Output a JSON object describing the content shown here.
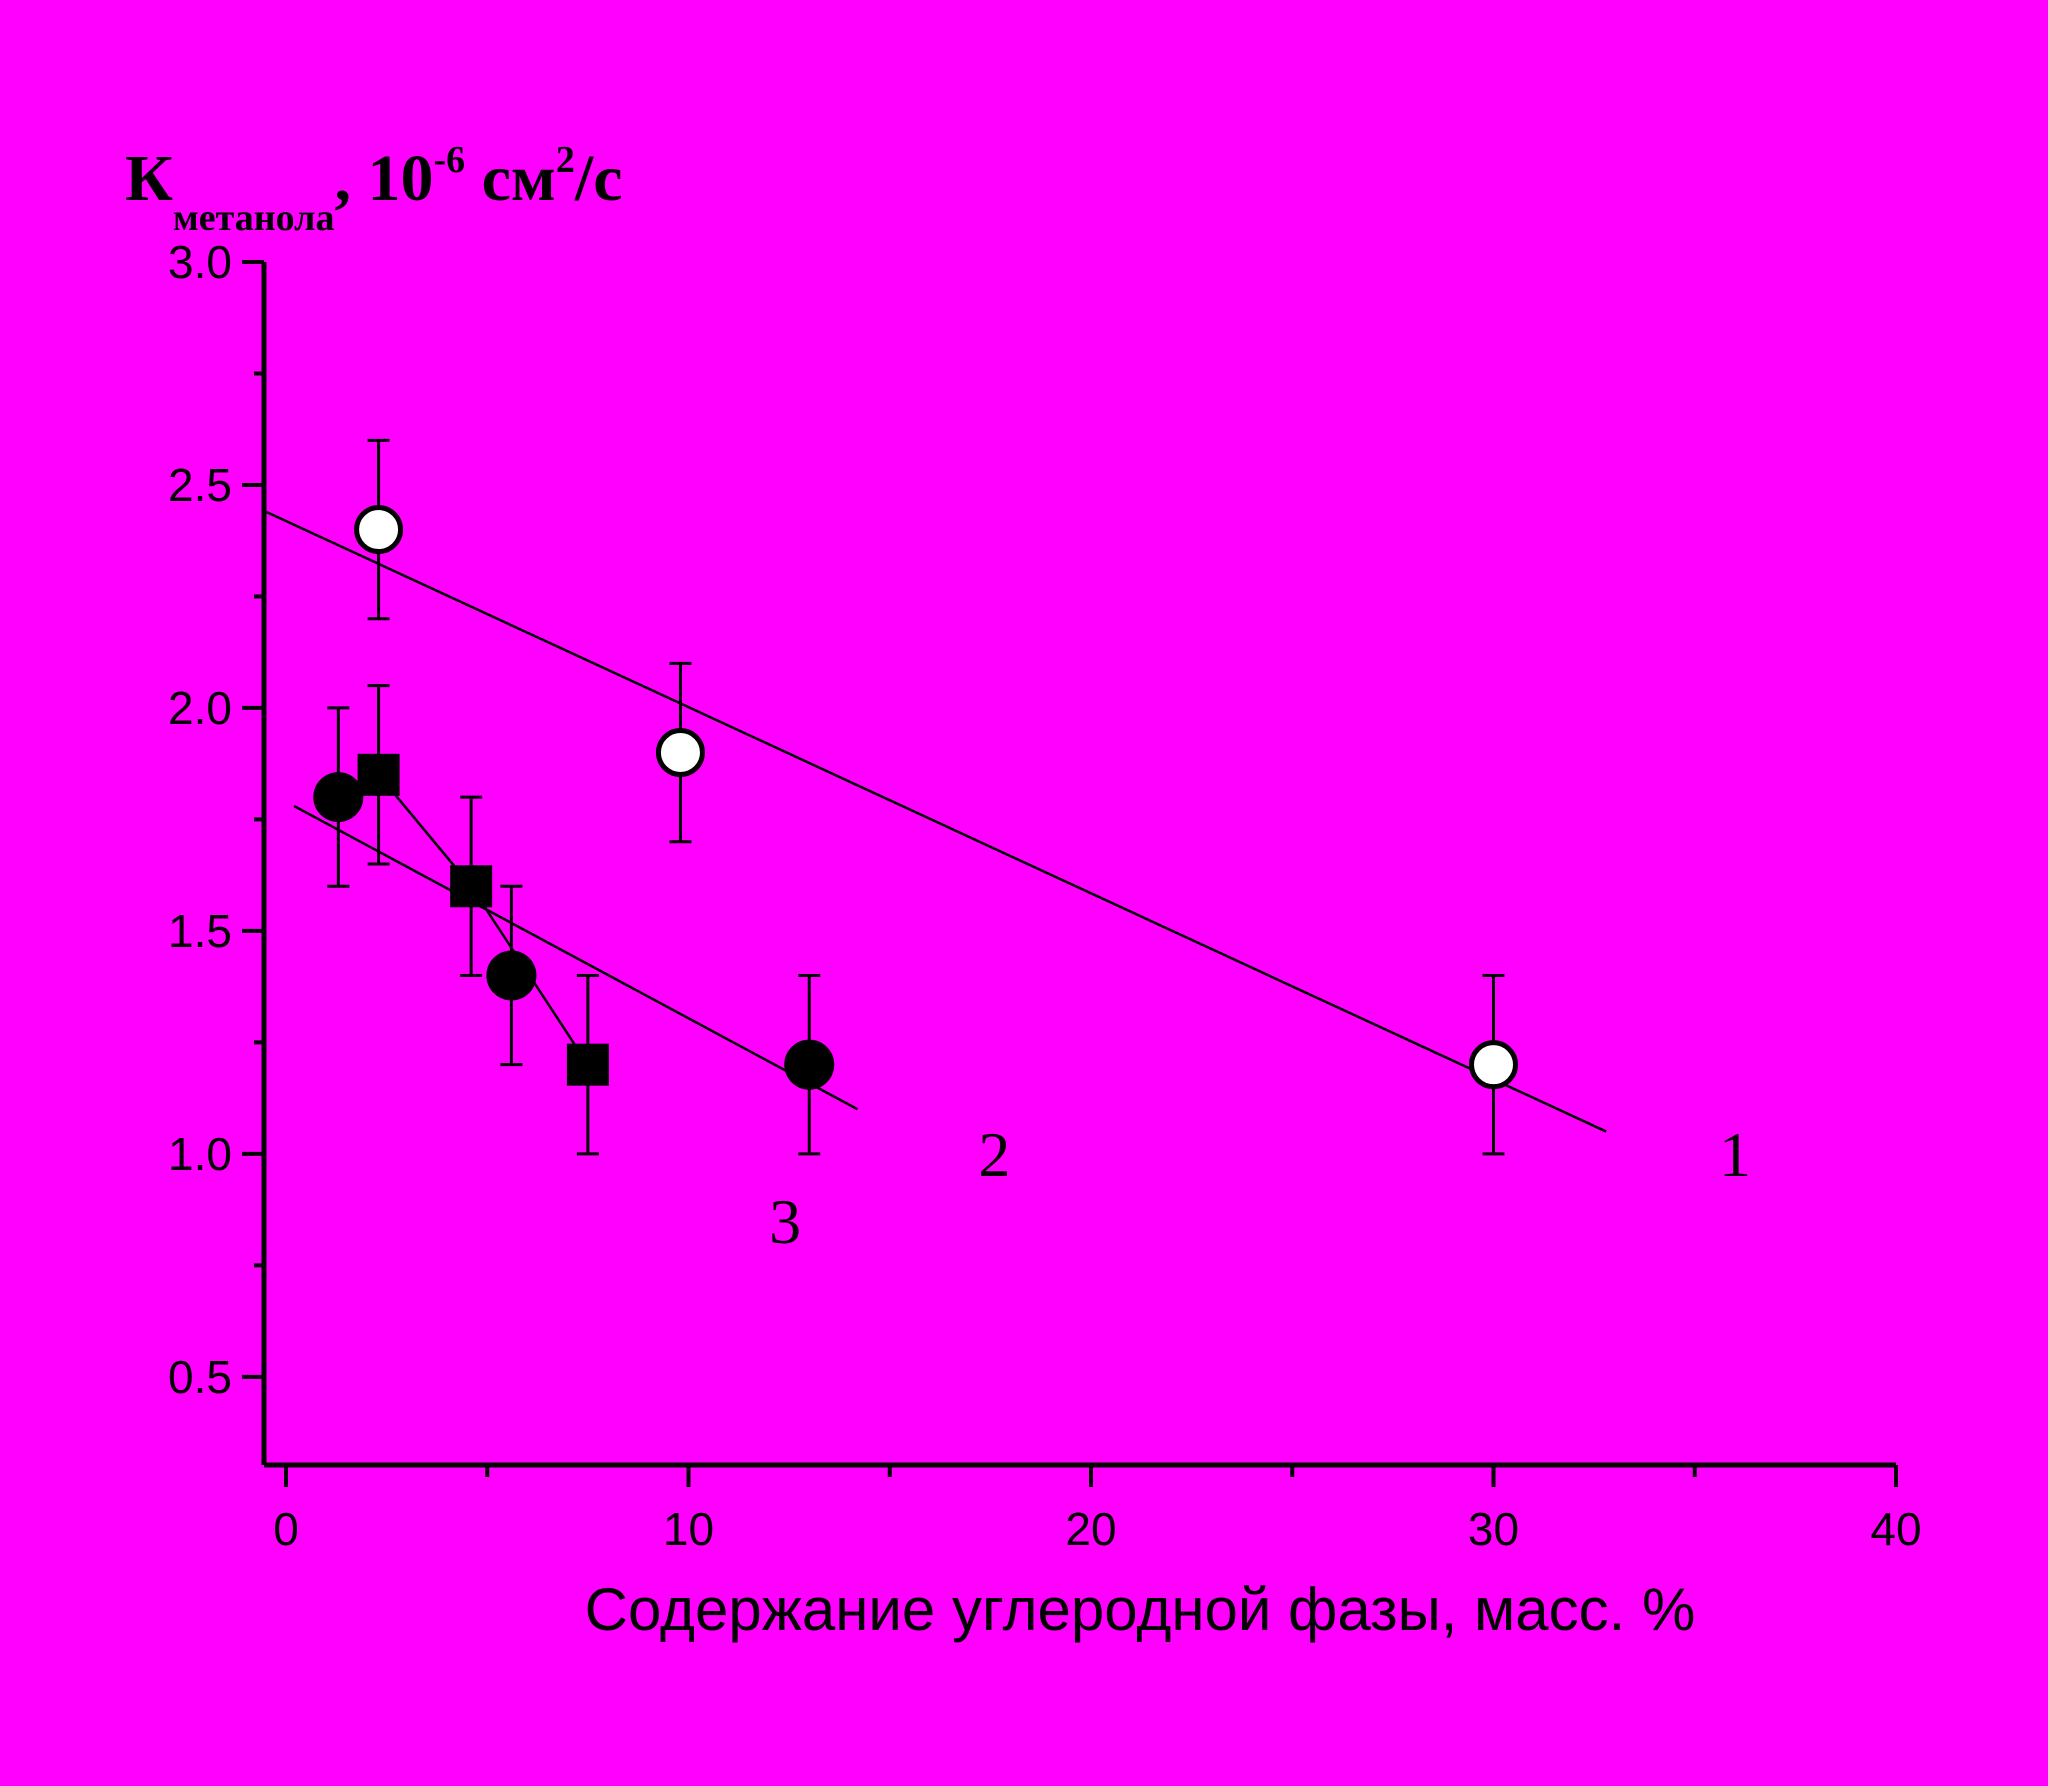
{
  "chart_data": {
    "type": "scatter",
    "background": "#ff00ff",
    "xlabel": "Содержание углеродной фазы, масс. %",
    "ylabel": {
      "main": "К",
      "subscript": "метанола",
      "units_prefix": ", 10",
      "exponent": "-6",
      "units_mid": " см",
      "units_exp": "2",
      "units_end": "/с"
    },
    "xlim": [
      0,
      40
    ],
    "ylim": [
      0.3,
      3.0
    ],
    "x_ticks": [
      0,
      10,
      20,
      30,
      40
    ],
    "x_tick_labels": [
      "0",
      "10",
      "20",
      "30",
      "40"
    ],
    "y_ticks": [
      0.5,
      1.0,
      1.5,
      2.0,
      2.5,
      3.0
    ],
    "y_tick_labels": [
      "0.5",
      "1.0",
      "1.5",
      "2.0",
      "2.5",
      "3.0"
    ],
    "grid": false,
    "series": [
      {
        "label": "1",
        "marker": "open-circle",
        "points": [
          {
            "x": 2.3,
            "y": 2.4,
            "err": 0.2
          },
          {
            "x": 9.8,
            "y": 1.9,
            "err": 0.2
          },
          {
            "x": 30.0,
            "y": 1.2,
            "err": 0.2
          }
        ],
        "fit_line": {
          "x": [
            -0.5,
            32.8
          ],
          "y": [
            2.44,
            1.05
          ]
        }
      },
      {
        "label": "2",
        "marker": "filled-circle",
        "points": [
          {
            "x": 1.3,
            "y": 1.8,
            "err": 0.2
          },
          {
            "x": 5.6,
            "y": 1.4,
            "err": 0.2
          },
          {
            "x": 13.0,
            "y": 1.2,
            "err": 0.2
          }
        ],
        "fit_line": {
          "x": [
            0.2,
            14.2
          ],
          "y": [
            1.78,
            1.1
          ]
        }
      },
      {
        "label": "3",
        "marker": "filled-square",
        "points": [
          {
            "x": 2.3,
            "y": 1.85,
            "err": 0.2
          },
          {
            "x": 4.6,
            "y": 1.6,
            "err": 0.2
          },
          {
            "x": 7.5,
            "y": 1.2,
            "err": 0.2
          }
        ],
        "connected": true
      }
    ],
    "curve_labels": [
      {
        "text": "1",
        "x": 36.0,
        "y": 0.95
      },
      {
        "text": "2",
        "x": 17.6,
        "y": 0.95
      },
      {
        "text": "3",
        "x": 12.4,
        "y": 0.8
      }
    ]
  }
}
